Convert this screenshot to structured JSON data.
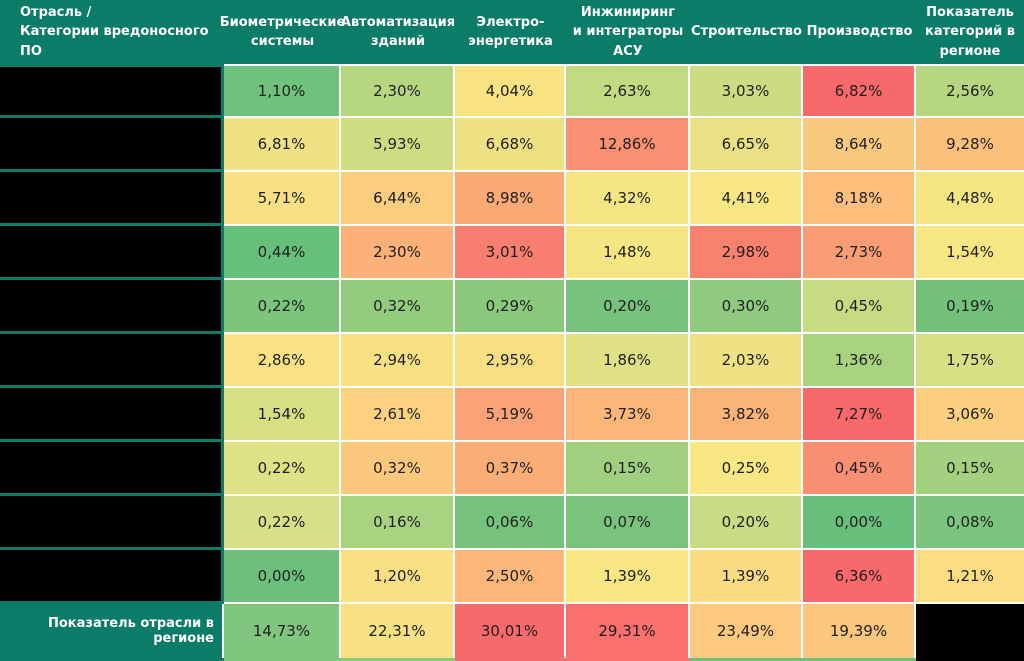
{
  "title_context": "heatmap-table",
  "colors": {
    "header_bg": "#0A7C67",
    "gridline": "#FFFFFF",
    "redacted": "#000000",
    "value_text": "#1F1F1F",
    "header_text": "#FFFFFF"
  },
  "chart_data": {
    "type": "heatmap",
    "corner_header": "Отрасль /\nКатегории вредоносного ПО",
    "columns": [
      "Биометрические\nсистемы",
      "Автоматизация\nзданий",
      "Электро-\nэнергетика",
      "Инжиниринг\nи интеграторы\nАСУ",
      "Строительство",
      "Производство",
      "Показатель\nкатегорий в\nрегионе"
    ],
    "row_labels_redacted": true,
    "rows": [
      {
        "cells": [
          {
            "v": "1,10%",
            "c": "#70C27C"
          },
          {
            "v": "2,30%",
            "c": "#B7D680"
          },
          {
            "v": "4,04%",
            "c": "#F9E383"
          },
          {
            "v": "2,63%",
            "c": "#C2DA81"
          },
          {
            "v": "3,03%",
            "c": "#CBDC82"
          },
          {
            "v": "6,82%",
            "c": "#F8696B"
          },
          {
            "v": "2,56%",
            "c": "#B7D680"
          }
        ]
      },
      {
        "cells": [
          {
            "v": "6,81%",
            "c": "#F0E284"
          },
          {
            "v": "5,93%",
            "c": "#CEDD82"
          },
          {
            "v": "6,68%",
            "c": "#EEE184"
          },
          {
            "v": "12,86%",
            "c": "#F89071"
          },
          {
            "v": "6,65%",
            "c": "#EAE184"
          },
          {
            "v": "8,64%",
            "c": "#FBC97D"
          },
          {
            "v": "9,28%",
            "c": "#FBC07B"
          }
        ]
      },
      {
        "cells": [
          {
            "v": "5,71%",
            "c": "#F9E083"
          },
          {
            "v": "6,44%",
            "c": "#FCCD7E"
          },
          {
            "v": "8,98%",
            "c": "#FBAA76"
          },
          {
            "v": "4,32%",
            "c": "#F6E583"
          },
          {
            "v": "4,41%",
            "c": "#F7E683"
          },
          {
            "v": "8,18%",
            "c": "#FCBE7A"
          },
          {
            "v": "4,48%",
            "c": "#F6E583"
          }
        ]
      },
      {
        "cells": [
          {
            "v": "0,44%",
            "c": "#66BF7A"
          },
          {
            "v": "2,30%",
            "c": "#FBB177"
          },
          {
            "v": "3,01%",
            "c": "#F87F6F"
          },
          {
            "v": "1,48%",
            "c": "#F6E683"
          },
          {
            "v": "2,98%",
            "c": "#F9826F"
          },
          {
            "v": "2,73%",
            "c": "#FA9D74"
          },
          {
            "v": "1,54%",
            "c": "#F7E684"
          }
        ]
      },
      {
        "cells": [
          {
            "v": "0,22%",
            "c": "#7CC57D"
          },
          {
            "v": "0,32%",
            "c": "#93CC7F"
          },
          {
            "v": "0,29%",
            "c": "#8CC97E"
          },
          {
            "v": "0,20%",
            "c": "#77C27C"
          },
          {
            "v": "0,30%",
            "c": "#8FCA7E"
          },
          {
            "v": "0,45%",
            "c": "#C6DB82"
          },
          {
            "v": "0,19%",
            "c": "#74C17C"
          }
        ]
      },
      {
        "cells": [
          {
            "v": "2,86%",
            "c": "#FAE183"
          },
          {
            "v": "2,94%",
            "c": "#FAE082"
          },
          {
            "v": "2,95%",
            "c": "#F9DF82"
          },
          {
            "v": "1,86%",
            "c": "#E0E185"
          },
          {
            "v": "2,03%",
            "c": "#EEE285"
          },
          {
            "v": "1,36%",
            "c": "#AAD380"
          },
          {
            "v": "1,75%",
            "c": "#D7E084"
          }
        ]
      },
      {
        "cells": [
          {
            "v": "1,54%",
            "c": "#D6E083"
          },
          {
            "v": "2,61%",
            "c": "#FDD180"
          },
          {
            "v": "5,19%",
            "c": "#FBA276"
          },
          {
            "v": "3,73%",
            "c": "#FCB678"
          },
          {
            "v": "3,82%",
            "c": "#FCB378"
          },
          {
            "v": "7,27%",
            "c": "#F8696B"
          },
          {
            "v": "3,06%",
            "c": "#FDCF7E"
          }
        ]
      },
      {
        "cells": [
          {
            "v": "0,22%",
            "c": "#DEE185"
          },
          {
            "v": "0,32%",
            "c": "#FCC87D"
          },
          {
            "v": "0,37%",
            "c": "#FBAD77"
          },
          {
            "v": "0,15%",
            "c": "#A0D07F"
          },
          {
            "v": "0,25%",
            "c": "#F9E783"
          },
          {
            "v": "0,45%",
            "c": "#F98F72"
          },
          {
            "v": "0,15%",
            "c": "#A3D17F"
          }
        ]
      },
      {
        "cells": [
          {
            "v": "0,22%",
            "c": "#D7E086"
          },
          {
            "v": "0,16%",
            "c": "#AAD381"
          },
          {
            "v": "0,06%",
            "c": "#76C27D"
          },
          {
            "v": "0,07%",
            "c": "#79C37D"
          },
          {
            "v": "0,20%",
            "c": "#C9DC84"
          },
          {
            "v": "0,00%",
            "c": "#68BF7B"
          },
          {
            "v": "0,08%",
            "c": "#7CC57E"
          }
        ]
      },
      {
        "cells": [
          {
            "v": "0,00%",
            "c": "#6CC07B"
          },
          {
            "v": "1,20%",
            "c": "#FBE083"
          },
          {
            "v": "2,50%",
            "c": "#FCB678"
          },
          {
            "v": "1,39%",
            "c": "#F8E683"
          },
          {
            "v": "1,39%",
            "c": "#FCDC81"
          },
          {
            "v": "6,36%",
            "c": "#F8696C"
          },
          {
            "v": "1,21%",
            "c": "#FCDD82"
          }
        ]
      }
    ],
    "footer": {
      "label": "Показатель отрасли в регионе",
      "cells": [
        {
          "v": "14,73%",
          "c": "#80C67E"
        },
        {
          "v": "22,31%",
          "c": "#F9E083"
        },
        {
          "v": "30,01%",
          "c": "#F8696B"
        },
        {
          "v": "29,31%",
          "c": "#F9706E"
        },
        {
          "v": "23,49%",
          "c": "#FCC97E"
        },
        {
          "v": "19,39%",
          "c": "#FCC67C"
        }
      ],
      "last_cell_redacted": true
    },
    "bottom_sliver_colors": [
      "#0A7C67",
      "#80C67E",
      "#8CC87E",
      "#F8696B",
      "#F9706E",
      "#6CC07B",
      "#6CC07B",
      "#000000"
    ]
  }
}
